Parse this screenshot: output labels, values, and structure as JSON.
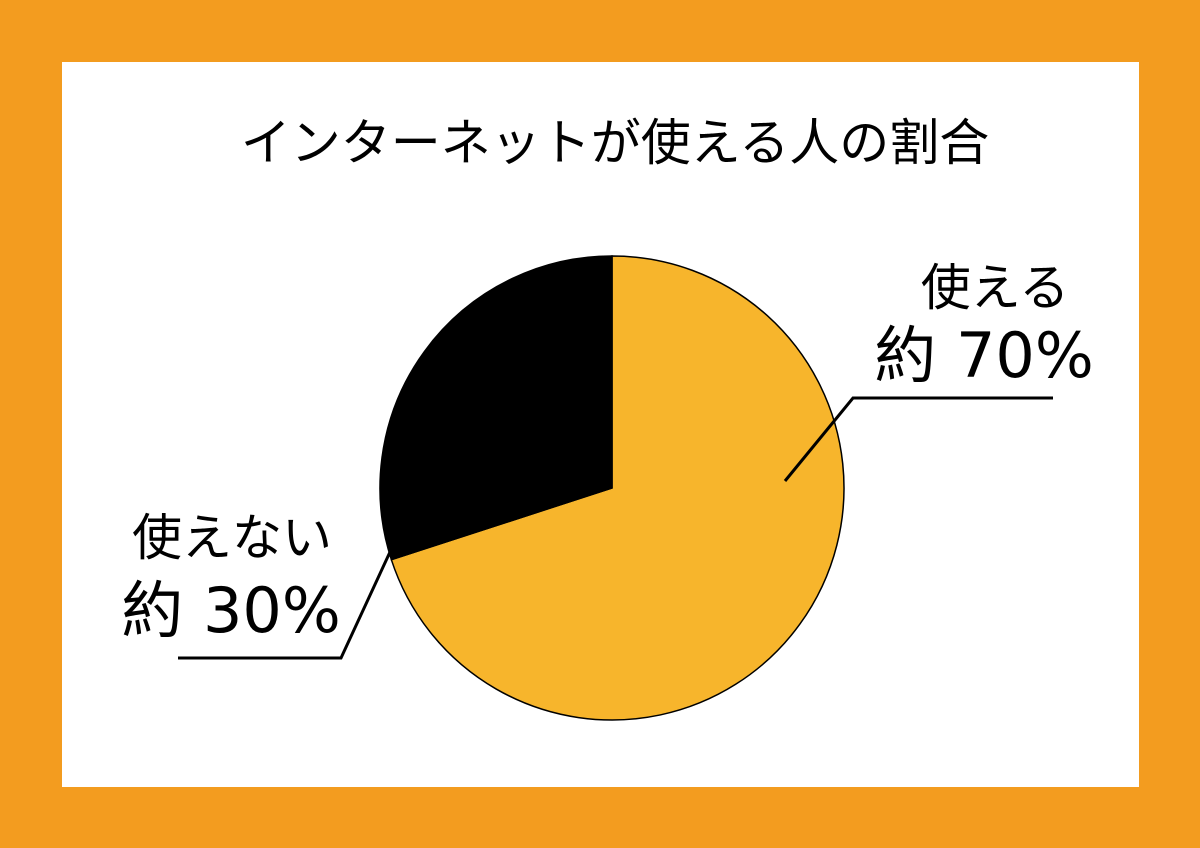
{
  "colors": {
    "frame": "#F39C1F",
    "panel": "#FFFFFF",
    "outline": "#000000"
  },
  "chart_data": {
    "type": "pie",
    "title": "インターネットが使える人の割合",
    "categories": [
      "使える",
      "使えない"
    ],
    "values": [
      70,
      30
    ],
    "value_labels": [
      "約 70%",
      "約 30%"
    ],
    "colors": [
      "#F7B52C",
      "#000000"
    ]
  }
}
